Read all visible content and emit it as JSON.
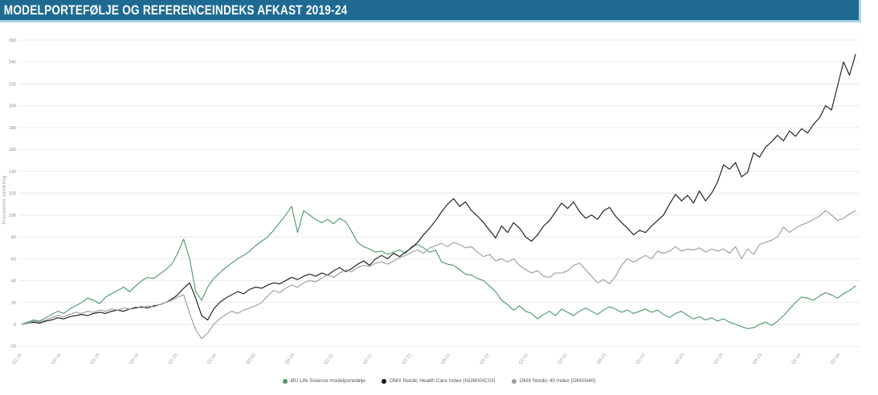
{
  "header": {
    "title": "MODELPORTEFØLJE OG REFERENCEINDEKS AFKAST 2019-24",
    "bg_color": "#1e6a93",
    "edge_color": "#a9d2e6"
  },
  "chart_data": {
    "type": "line",
    "title": "Modelportefølje og referenceindeks afkast 2019-24",
    "xlabel": "",
    "ylabel": "Procentvis udvikling",
    "ylim": [
      -20,
      260
    ],
    "ytick_step": 20,
    "grid": true,
    "legend_position": "bottom",
    "x_tick_labels": [
      "Q1-19",
      "Q2-19",
      "Q3-19",
      "Q4-19",
      "Q1-20",
      "Q2-20",
      "Q3-20",
      "Q4-20",
      "Q1-21",
      "Q2-21",
      "Q3-21",
      "Q4-21",
      "Q1-22",
      "Q2-22",
      "Q3-22",
      "Q4-22",
      "Q1-23",
      "Q2-23",
      "Q3-23",
      "Q4-23",
      "Q1-24",
      "Q2-24"
    ],
    "series": [
      {
        "name": "ØU Life Science modelportefølje",
        "color": "#4c9568",
        "values": [
          0,
          2,
          4,
          3,
          6,
          9,
          12,
          10,
          14,
          17,
          20,
          24,
          22,
          19,
          25,
          28,
          31,
          34,
          30,
          35,
          40,
          43,
          42,
          46,
          50,
          55,
          65,
          78,
          60,
          30,
          22,
          34,
          42,
          47,
          52,
          56,
          60,
          63,
          67,
          72,
          76,
          80,
          86,
          93,
          100,
          108,
          84,
          104,
          100,
          96,
          93,
          96,
          92,
          97,
          94,
          85,
          75,
          71,
          69,
          66,
          67,
          64,
          66,
          68,
          65,
          71,
          73,
          70,
          66,
          68,
          57,
          55,
          54,
          50,
          46,
          45,
          42,
          40,
          35,
          30,
          22,
          18,
          13,
          17,
          12,
          10,
          5,
          9,
          12,
          8,
          14,
          11,
          8,
          12,
          15,
          12,
          9,
          13,
          16,
          14,
          11,
          13,
          10,
          12,
          14,
          11,
          13,
          9,
          6,
          10,
          12,
          8,
          5,
          7,
          4,
          6,
          3,
          5,
          2,
          0,
          -2,
          -4,
          -3,
          0,
          2,
          -1,
          3,
          8,
          14,
          20,
          25,
          24,
          22,
          26,
          29,
          27,
          24,
          28,
          31,
          35
        ]
      },
      {
        "name": "OMX Nordic Health Care Index (NOMXHCGI)",
        "color": "#151515",
        "values": [
          0,
          1,
          2,
          1,
          3,
          4,
          6,
          5,
          7,
          8,
          9,
          8,
          10,
          11,
          10,
          12,
          13,
          12,
          14,
          15,
          16,
          15,
          17,
          18,
          20,
          23,
          27,
          33,
          38,
          24,
          8,
          4,
          14,
          20,
          24,
          27,
          30,
          28,
          32,
          34,
          33,
          36,
          38,
          37,
          40,
          43,
          41,
          44,
          46,
          44,
          47,
          45,
          49,
          52,
          48,
          51,
          55,
          58,
          54,
          60,
          63,
          60,
          65,
          62,
          66,
          70,
          75,
          82,
          88,
          95,
          103,
          110,
          115,
          108,
          112,
          104,
          99,
          93,
          86,
          79,
          90,
          84,
          93,
          88,
          80,
          76,
          82,
          90,
          95,
          103,
          111,
          106,
          112,
          103,
          97,
          100,
          96,
          104,
          107,
          99,
          93,
          88,
          82,
          86,
          84,
          90,
          95,
          100,
          110,
          119,
          113,
          118,
          111,
          122,
          113,
          120,
          130,
          146,
          142,
          148,
          135,
          139,
          157,
          153,
          162,
          167,
          173,
          168,
          177,
          172,
          179,
          175,
          183,
          189,
          200,
          196,
          218,
          240,
          228,
          247
        ]
      },
      {
        "name": "OMX Nordic 40 Index (OMXN40)",
        "color": "#9b9b9b",
        "values": [
          0,
          1,
          3,
          2,
          4,
          6,
          8,
          7,
          9,
          11,
          10,
          12,
          11,
          13,
          12,
          14,
          13,
          15,
          14,
          16,
          15,
          17,
          16,
          18,
          20,
          22,
          25,
          27,
          10,
          -5,
          -13,
          -8,
          0,
          5,
          9,
          12,
          10,
          13,
          15,
          17,
          20,
          26,
          31,
          29,
          33,
          36,
          34,
          38,
          40,
          39,
          42,
          45,
          43,
          47,
          50,
          48,
          52,
          54,
          53,
          56,
          57,
          55,
          58,
          61,
          63,
          66,
          68,
          65,
          70,
          72,
          74,
          71,
          75,
          73,
          70,
          71,
          66,
          62,
          64,
          58,
          60,
          57,
          60,
          54,
          50,
          47,
          49,
          44,
          43,
          47,
          47,
          49,
          54,
          56,
          50,
          44,
          38,
          41,
          37,
          44,
          54,
          60,
          57,
          60,
          63,
          60,
          67,
          65,
          67,
          71,
          67,
          69,
          68,
          70,
          66,
          69,
          67,
          69,
          65,
          71,
          60,
          69,
          64,
          73,
          75,
          77,
          80,
          89,
          84,
          88,
          91,
          93,
          96,
          99,
          104,
          100,
          95,
          97,
          101,
          104
        ]
      }
    ]
  }
}
